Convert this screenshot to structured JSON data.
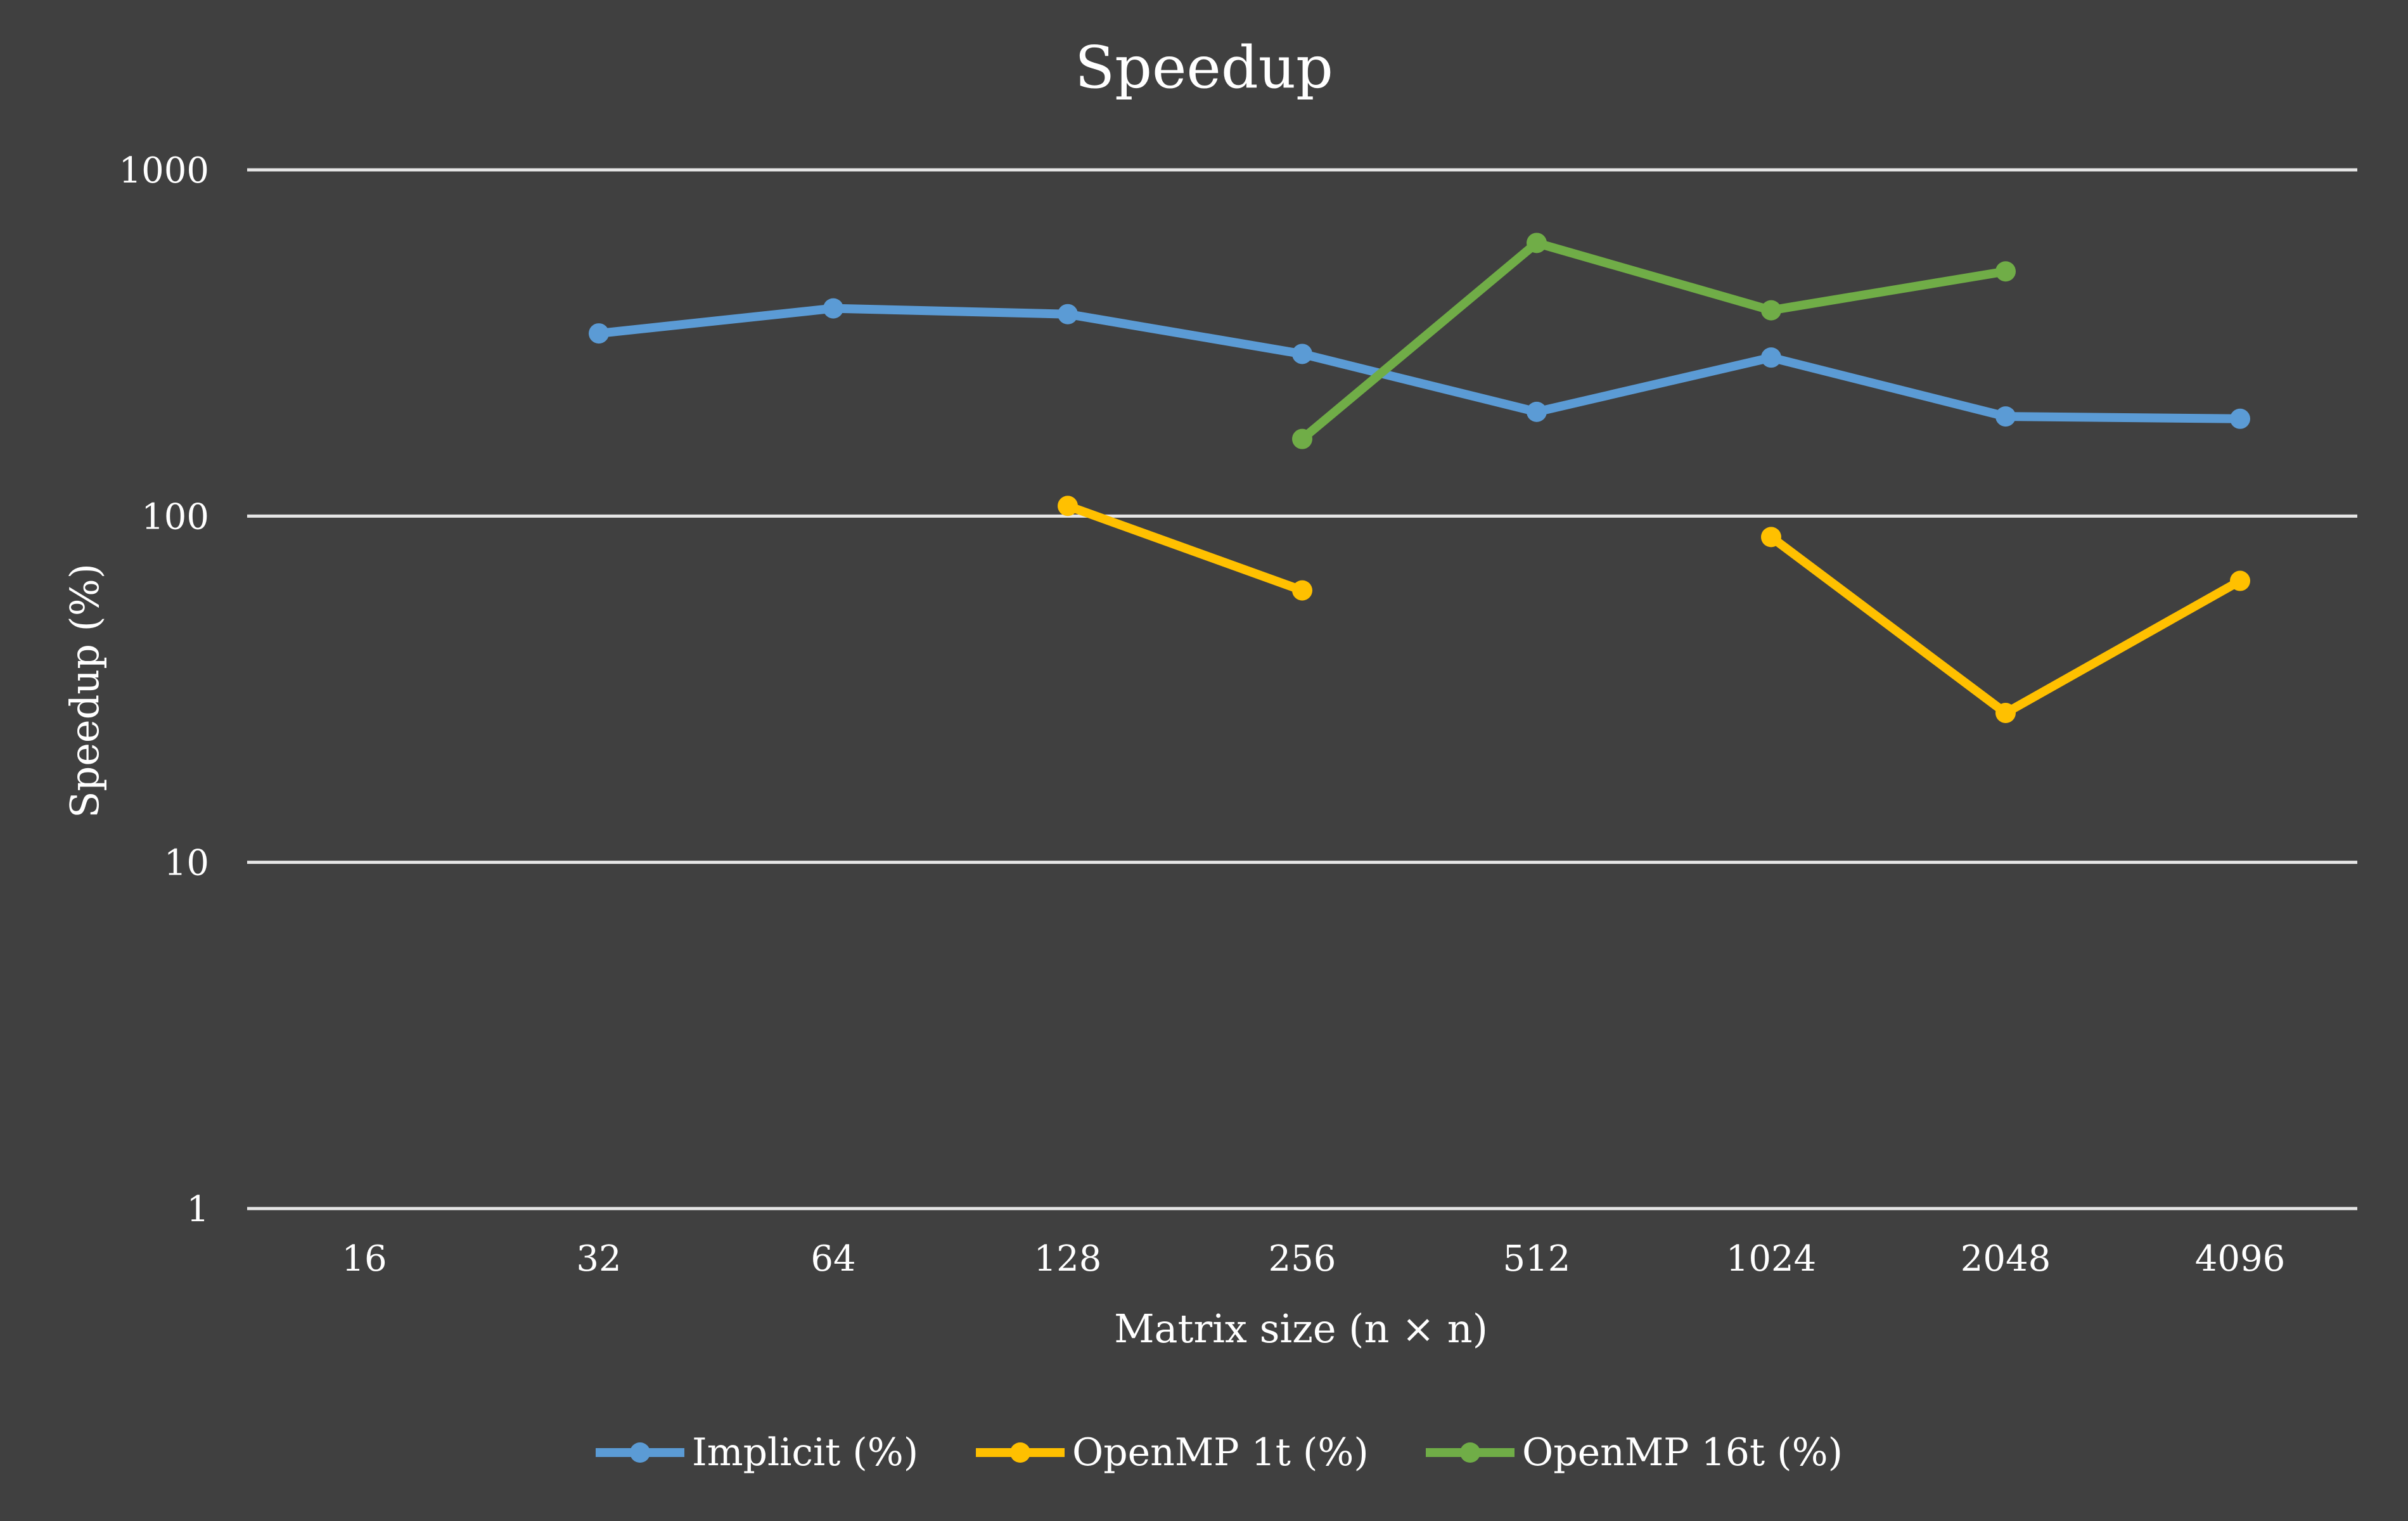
{
  "chart_data": {
    "type": "line",
    "title": "Speedup",
    "xlabel": "Matrix size (n × n)",
    "ylabel": "Speedup (%)",
    "yscale": "log",
    "ylim": [
      1,
      1000
    ],
    "yticks": [
      1,
      10,
      100,
      1000
    ],
    "ytick_labels": [
      "1",
      "10",
      "100",
      "1000"
    ],
    "categories": [
      "16",
      "32",
      "64",
      "128",
      "256",
      "512",
      "1024",
      "2048",
      "4096"
    ],
    "grid": true,
    "legend": "bottom",
    "series": [
      {
        "name": "Implicit (%)",
        "color": "#5B9BD5",
        "values": [
          null,
          337,
          398,
          383,
          294,
          200,
          287,
          194,
          191
        ]
      },
      {
        "name": "OpenMP 1t (%)",
        "color": "#FFC000",
        "values": [
          null,
          null,
          null,
          107,
          61,
          null,
          87,
          27,
          65
        ]
      },
      {
        "name": "OpenMP 16t (%)",
        "color": "#70AD47",
        "values": [
          null,
          null,
          null,
          null,
          167,
          615,
          393,
          509,
          null
        ]
      }
    ]
  }
}
